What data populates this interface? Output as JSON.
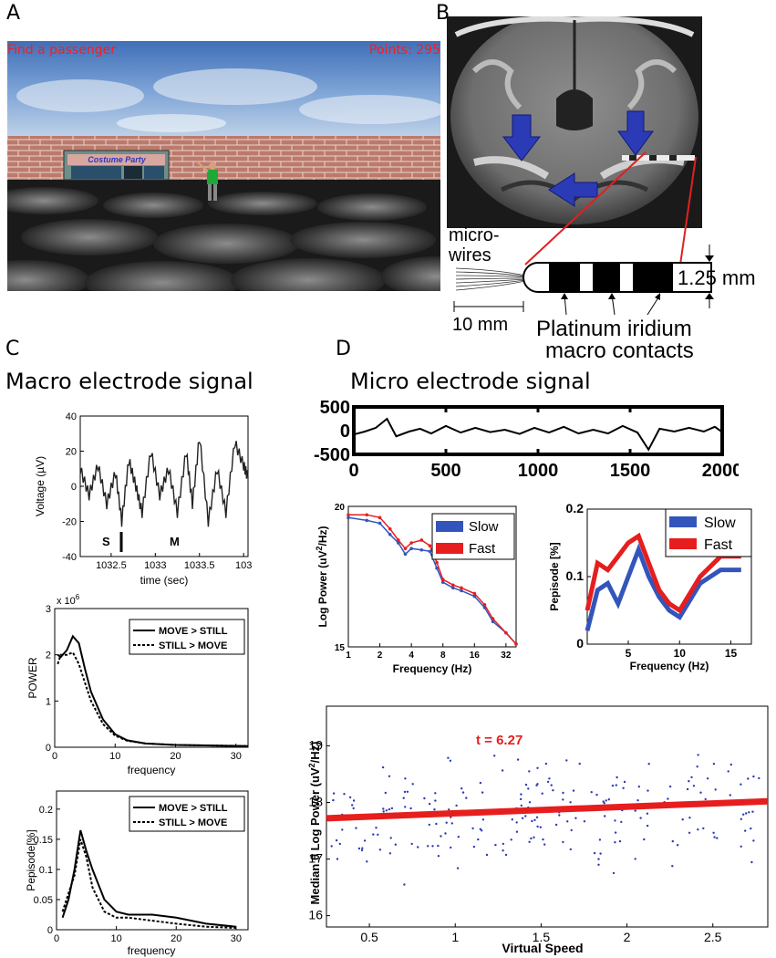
{
  "panels": {
    "a": "A",
    "b": "B",
    "c": "C",
    "d": "D"
  },
  "game": {
    "hud_left": "Find a passenger",
    "hud_right": "Points: 295",
    "store_sign": "Costume Party",
    "colors": {
      "sky": "#5b86c4",
      "wall": "#b9786a",
      "hud": "#ff1a1a",
      "store": "#2a8a7a"
    }
  },
  "mri": {
    "microwires_label": "micro-\nwires",
    "scale_label": "10 mm",
    "diameter_label": "1.25 mm",
    "contacts_line1": "Platinum iridium",
    "contacts_line2": "macro contacts",
    "colors": {
      "arrow": "#2b3ab5",
      "lead": "#e02020"
    }
  },
  "macro_title": "Macro electrode signal",
  "micro_title": "Micro electrode signal",
  "c1": {
    "ylabel": "Voltage (µV)",
    "xlabel": "time (sec)",
    "yticks": [
      "40",
      "20",
      "0",
      "-20",
      "-40"
    ],
    "xticks": [
      "1032.5",
      "1033",
      "1033.5",
      "103"
    ],
    "markers": [
      "S",
      "M"
    ]
  },
  "c2": {
    "ylabel": "POWER",
    "xlabel": "frequency",
    "exponent": "x 10",
    "exponent_power": "6",
    "yticks": [
      "3",
      "2",
      "1",
      "0"
    ],
    "xticks": [
      "0",
      "10",
      "20",
      "30"
    ],
    "legend": [
      "MOVE > STILL",
      "STILL > MOVE"
    ]
  },
  "c3": {
    "ylabel": "Pepisode[%]",
    "xlabel": "frequency",
    "yticks": [
      "0.2",
      "0.15",
      "0.1",
      "0.05",
      "0"
    ],
    "xticks": [
      "0",
      "10",
      "20",
      "30"
    ],
    "legend": [
      "MOVE > STILL",
      "STILL > MOVE"
    ]
  },
  "d1": {
    "yticks": [
      "500",
      "0",
      "-500"
    ],
    "xticks": [
      "0",
      "500",
      "1000",
      "1500",
      "2000"
    ]
  },
  "d2": {
    "ylabel": "Log Power (uV",
    "ylabel_sup": "2",
    "ylabel_end": "/Hz)",
    "xlabel": "Frequency (Hz)",
    "yticks": [
      "20",
      "15"
    ],
    "xticks": [
      "1",
      "2",
      "4",
      "8",
      "16",
      "32"
    ],
    "legend": [
      "Slow",
      "Fast"
    ],
    "colors": {
      "slow": "#3355bb",
      "fast": "#e61e1e"
    }
  },
  "d3": {
    "ylabel": "Pepisode [%]",
    "xlabel": "Frequency (Hz)",
    "yticks": [
      "0.2",
      "0.1",
      "0"
    ],
    "xticks": [
      "5",
      "10",
      "15"
    ],
    "legend": [
      "Slow",
      "Fast"
    ]
  },
  "d4": {
    "ylabel": "Median θ Log Power (uV",
    "ylabel_sup": "2",
    "ylabel_end": "/Hz)",
    "xlabel": "Virtual Speed",
    "annotation": "t = 6.27",
    "yticks": [
      "19",
      "18",
      "17",
      "16"
    ],
    "xticks": [
      "0.5",
      "1",
      "1.5",
      "2",
      "2.5"
    ]
  },
  "chart_data": [
    {
      "type": "line",
      "ylabel": "Voltage (µV)",
      "xlabel": "time (sec)",
      "xlim": [
        1032.15,
        1034.05
      ],
      "ylim": [
        -40,
        40
      ],
      "series": [
        {
          "x": [
            1032.15,
            1032.25,
            1032.35,
            1032.45,
            1032.55,
            1032.62,
            1032.7,
            1032.78,
            1032.85,
            1032.95,
            1033.05,
            1033.15,
            1033.25,
            1033.35,
            1033.42,
            1033.5,
            1033.6,
            1033.7,
            1033.8,
            1033.9,
            1034.0,
            1034.05
          ],
          "y": [
            10,
            -5,
            12,
            -10,
            8,
            -20,
            15,
            0,
            -15,
            20,
            -5,
            10,
            -15,
            20,
            -10,
            28,
            -20,
            10,
            -15,
            25,
            12,
            5
          ]
        }
      ]
    },
    {
      "type": "line",
      "ylabel": "POWER",
      "xlabel": "frequency",
      "xlim": [
        0,
        32
      ],
      "ylim": [
        0,
        3000000
      ],
      "series": [
        {
          "name": "MOVE > STILL",
          "x": [
            0.5,
            1,
            2,
            3,
            4,
            5,
            6,
            8,
            10,
            12,
            15,
            20,
            25,
            30,
            32
          ],
          "y": [
            2000000,
            1950000,
            2100000,
            2400000,
            2250000,
            1700000,
            1200000,
            600000,
            280000,
            150000,
            80000,
            50000,
            40000,
            30000,
            25000
          ]
        },
        {
          "name": "STILL > MOVE",
          "x": [
            0.5,
            1,
            2,
            3,
            4,
            5,
            6,
            8,
            10,
            12,
            15,
            20,
            25,
            30,
            32
          ],
          "y": [
            1800000,
            2000000,
            2000000,
            2050000,
            1800000,
            1400000,
            1000000,
            500000,
            250000,
            140000,
            80000,
            50000,
            40000,
            30000,
            25000
          ]
        }
      ]
    },
    {
      "type": "line",
      "ylabel": "Pepisode[%]",
      "xlabel": "frequency",
      "xlim": [
        0,
        32
      ],
      "ylim": [
        0,
        0.23
      ],
      "series": [
        {
          "name": "MOVE > STILL",
          "x": [
            1,
            2,
            3,
            4,
            5,
            6,
            8,
            10,
            12,
            16,
            20,
            25,
            30
          ],
          "y": [
            0.02,
            0.05,
            0.1,
            0.165,
            0.13,
            0.1,
            0.05,
            0.03,
            0.025,
            0.025,
            0.02,
            0.01,
            0.005
          ]
        },
        {
          "name": "STILL > MOVE",
          "x": [
            1,
            2,
            3,
            4,
            5,
            6,
            8,
            10,
            12,
            16,
            20,
            25,
            30
          ],
          "y": [
            0.03,
            0.06,
            0.09,
            0.15,
            0.12,
            0.07,
            0.03,
            0.02,
            0.02,
            0.015,
            0.01,
            0.005,
            0.003
          ]
        }
      ]
    },
    {
      "type": "line",
      "xlim": [
        0,
        2000
      ],
      "ylim": [
        -500,
        500
      ],
      "series": [
        {
          "x": [
            0,
            60,
            120,
            180,
            230,
            300,
            360,
            420,
            500,
            580,
            660,
            740,
            820,
            900,
            980,
            1060,
            1140,
            1220,
            1300,
            1380,
            1460,
            1540,
            1600,
            1660,
            1740,
            1820,
            1900,
            1960,
            2000
          ],
          "y": [
            -80,
            -20,
            60,
            250,
            -120,
            -20,
            40,
            -60,
            100,
            -40,
            60,
            -30,
            20,
            -70,
            60,
            -40,
            80,
            -60,
            20,
            -60,
            100,
            -40,
            -400,
            40,
            -20,
            60,
            -20,
            80,
            -30
          ]
        }
      ]
    },
    {
      "type": "line",
      "ylabel": "Log Power (uV2/Hz)",
      "xlabel": "Frequency (Hz)",
      "ylim": [
        15,
        20
      ],
      "log_x": true,
      "categories": [
        "1",
        "1.5",
        "2",
        "2.5",
        "3",
        "3.5",
        "4",
        "5",
        "6",
        "7",
        "8",
        "10",
        "12",
        "16",
        "20",
        "24",
        "32",
        "40"
      ],
      "series": [
        {
          "name": "Slow",
          "values": [
            19.6,
            19.5,
            19.4,
            19.0,
            18.7,
            18.3,
            18.5,
            18.45,
            18.4,
            17.8,
            17.3,
            17.1,
            17.0,
            16.8,
            16.4,
            15.9,
            15.5,
            15.1
          ]
        },
        {
          "name": "Fast",
          "values": [
            19.7,
            19.7,
            19.6,
            19.2,
            18.8,
            18.5,
            18.7,
            18.8,
            18.6,
            18.0,
            17.4,
            17.2,
            17.1,
            16.9,
            16.5,
            16.0,
            15.5,
            15.1
          ]
        }
      ]
    },
    {
      "type": "line",
      "ylabel": "Pepisode [%]",
      "xlabel": "Frequency (Hz)",
      "xlim": [
        1,
        17
      ],
      "ylim": [
        0,
        0.2
      ],
      "series": [
        {
          "name": "Slow",
          "x": [
            1,
            2,
            3,
            4,
            5,
            6,
            7,
            8,
            9,
            10,
            12,
            14,
            16
          ],
          "y": [
            0.02,
            0.08,
            0.09,
            0.06,
            0.1,
            0.14,
            0.1,
            0.07,
            0.05,
            0.04,
            0.09,
            0.11,
            0.11
          ]
        },
        {
          "name": "Fast",
          "x": [
            1,
            2,
            3,
            4,
            5,
            6,
            7,
            8,
            9,
            10,
            12,
            14,
            16
          ],
          "y": [
            0.05,
            0.12,
            0.11,
            0.13,
            0.15,
            0.16,
            0.12,
            0.08,
            0.06,
            0.05,
            0.1,
            0.13,
            0.13
          ]
        }
      ]
    },
    {
      "type": "scatter",
      "ylabel": "Median θ Log Power (uV2/Hz)",
      "xlabel": "Virtual Speed",
      "xlim": [
        0.25,
        2.82
      ],
      "ylim": [
        15.8,
        19.7
      ],
      "fit": {
        "x": [
          0.25,
          2.82
        ],
        "y": [
          17.72,
          18.02
        ]
      },
      "annotation": "t = 6.27",
      "points_count": 220
    }
  ]
}
